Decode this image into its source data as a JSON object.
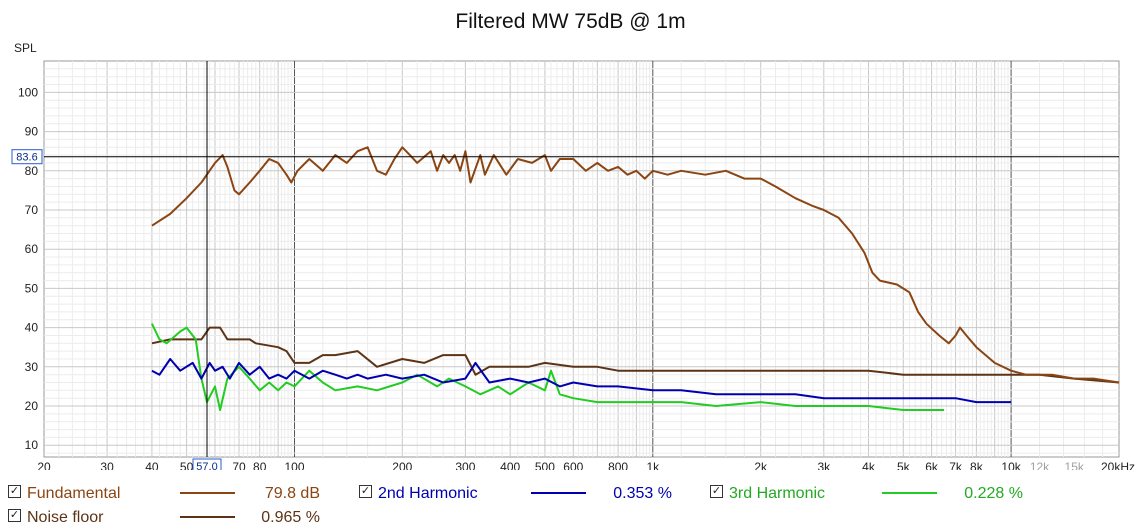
{
  "chart_data": {
    "type": "line",
    "title": "Filtered MW 75dB @ 1m",
    "ylabel": "SPL",
    "xlabel": "",
    "x_scale": "log",
    "xlim": [
      20,
      20000
    ],
    "ylim": [
      7,
      108
    ],
    "grid": true,
    "x_ticks": [
      {
        "v": 20,
        "label": "20"
      },
      {
        "v": 30,
        "label": "30"
      },
      {
        "v": 40,
        "label": "40"
      },
      {
        "v": 50,
        "label": "50"
      },
      {
        "v": 70,
        "label": "70"
      },
      {
        "v": 80,
        "label": "80"
      },
      {
        "v": 100,
        "label": "100"
      },
      {
        "v": 200,
        "label": "200"
      },
      {
        "v": 300,
        "label": "300"
      },
      {
        "v": 400,
        "label": "400"
      },
      {
        "v": 500,
        "label": "500"
      },
      {
        "v": 600,
        "label": "600"
      },
      {
        "v": 800,
        "label": "800"
      },
      {
        "v": 1000,
        "label": "1k"
      },
      {
        "v": 2000,
        "label": "2k"
      },
      {
        "v": 3000,
        "label": "3k"
      },
      {
        "v": 4000,
        "label": "4k"
      },
      {
        "v": 5000,
        "label": "5k"
      },
      {
        "v": 6000,
        "label": "6k"
      },
      {
        "v": 7000,
        "label": "7k"
      },
      {
        "v": 8000,
        "label": "8k"
      },
      {
        "v": 10000,
        "label": "10k"
      },
      {
        "v": 12000,
        "label": "12k",
        "muted": true
      },
      {
        "v": 15000,
        "label": "15k",
        "muted": true
      },
      {
        "v": 20000,
        "label": "20kHz"
      }
    ],
    "y_ticks": [
      10,
      20,
      30,
      40,
      50,
      60,
      70,
      80,
      90,
      100
    ],
    "cursor": {
      "x": 57.0,
      "x_label": "57.0",
      "y": 83.6,
      "y_label": "83.6"
    },
    "series": [
      {
        "name": "Fundamental",
        "color": "#8B4513",
        "value_label": "79.8 dB",
        "points": [
          [
            40,
            66
          ],
          [
            45,
            69
          ],
          [
            50,
            73
          ],
          [
            55,
            77
          ],
          [
            60,
            82
          ],
          [
            63,
            84
          ],
          [
            65,
            81
          ],
          [
            68,
            75
          ],
          [
            70,
            74
          ],
          [
            75,
            77
          ],
          [
            80,
            80
          ],
          [
            85,
            83
          ],
          [
            90,
            82
          ],
          [
            95,
            79
          ],
          [
            98,
            77
          ],
          [
            102,
            80
          ],
          [
            110,
            83
          ],
          [
            120,
            80
          ],
          [
            130,
            84
          ],
          [
            140,
            82
          ],
          [
            150,
            85
          ],
          [
            160,
            86
          ],
          [
            170,
            80
          ],
          [
            180,
            79
          ],
          [
            190,
            83
          ],
          [
            200,
            86
          ],
          [
            210,
            84
          ],
          [
            220,
            82
          ],
          [
            240,
            85
          ],
          [
            250,
            80
          ],
          [
            260,
            84
          ],
          [
            270,
            82
          ],
          [
            280,
            84
          ],
          [
            290,
            80
          ],
          [
            300,
            85
          ],
          [
            310,
            77
          ],
          [
            330,
            84
          ],
          [
            340,
            79
          ],
          [
            360,
            84
          ],
          [
            390,
            79
          ],
          [
            420,
            83
          ],
          [
            460,
            82
          ],
          [
            500,
            84
          ],
          [
            520,
            80
          ],
          [
            550,
            83
          ],
          [
            600,
            83
          ],
          [
            650,
            80
          ],
          [
            700,
            82
          ],
          [
            750,
            80
          ],
          [
            800,
            81
          ],
          [
            850,
            79
          ],
          [
            900,
            80
          ],
          [
            950,
            78
          ],
          [
            1000,
            80
          ],
          [
            1100,
            79
          ],
          [
            1200,
            80
          ],
          [
            1400,
            79
          ],
          [
            1600,
            80
          ],
          [
            1800,
            78
          ],
          [
            2000,
            78
          ],
          [
            2200,
            76
          ],
          [
            2500,
            73
          ],
          [
            2800,
            71
          ],
          [
            3000,
            70
          ],
          [
            3300,
            68
          ],
          [
            3600,
            64
          ],
          [
            3900,
            59
          ],
          [
            4100,
            54
          ],
          [
            4300,
            52
          ],
          [
            4800,
            51
          ],
          [
            5200,
            49
          ],
          [
            5500,
            44
          ],
          [
            5800,
            41
          ],
          [
            6300,
            38
          ],
          [
            6700,
            36
          ],
          [
            7000,
            38
          ],
          [
            7200,
            40
          ],
          [
            7500,
            38
          ],
          [
            8000,
            35
          ],
          [
            9000,
            31
          ],
          [
            10000,
            29
          ],
          [
            11000,
            28
          ],
          [
            13000,
            28
          ],
          [
            15000,
            27
          ],
          [
            17000,
            27
          ],
          [
            20000,
            26
          ]
        ]
      },
      {
        "name": "2nd Harmonic",
        "color": "#0000B0",
        "value_label": "0.353 %",
        "points": [
          [
            40,
            29
          ],
          [
            42,
            28
          ],
          [
            45,
            32
          ],
          [
            48,
            29
          ],
          [
            52,
            31
          ],
          [
            55,
            27
          ],
          [
            58,
            31
          ],
          [
            60,
            29
          ],
          [
            63,
            30
          ],
          [
            66,
            27
          ],
          [
            70,
            31
          ],
          [
            75,
            28
          ],
          [
            80,
            30
          ],
          [
            85,
            27
          ],
          [
            90,
            28
          ],
          [
            95,
            27
          ],
          [
            100,
            29
          ],
          [
            110,
            27
          ],
          [
            120,
            29
          ],
          [
            130,
            28
          ],
          [
            140,
            27
          ],
          [
            150,
            28
          ],
          [
            160,
            27
          ],
          [
            180,
            28
          ],
          [
            200,
            27
          ],
          [
            230,
            28
          ],
          [
            260,
            26
          ],
          [
            300,
            27
          ],
          [
            320,
            31
          ],
          [
            350,
            26
          ],
          [
            400,
            27
          ],
          [
            450,
            26
          ],
          [
            500,
            27
          ],
          [
            550,
            25
          ],
          [
            600,
            26
          ],
          [
            700,
            25
          ],
          [
            800,
            25
          ],
          [
            1000,
            24
          ],
          [
            1200,
            24
          ],
          [
            1500,
            23
          ],
          [
            2000,
            23
          ],
          [
            2500,
            23
          ],
          [
            3000,
            22
          ],
          [
            4000,
            22
          ],
          [
            5000,
            22
          ],
          [
            6000,
            22
          ],
          [
            7000,
            22
          ],
          [
            8000,
            21
          ],
          [
            10000,
            21
          ]
        ]
      },
      {
        "name": "3rd Harmonic",
        "color": "#22CC22",
        "value_label": "0.228 %",
        "points": [
          [
            40,
            41
          ],
          [
            42,
            37
          ],
          [
            44,
            36
          ],
          [
            48,
            39
          ],
          [
            50,
            40
          ],
          [
            53,
            37
          ],
          [
            55,
            27
          ],
          [
            57,
            21
          ],
          [
            60,
            25
          ],
          [
            62,
            19
          ],
          [
            65,
            27
          ],
          [
            70,
            30
          ],
          [
            75,
            27
          ],
          [
            80,
            24
          ],
          [
            85,
            26
          ],
          [
            90,
            24
          ],
          [
            95,
            26
          ],
          [
            100,
            25
          ],
          [
            110,
            29
          ],
          [
            120,
            26
          ],
          [
            130,
            24
          ],
          [
            150,
            25
          ],
          [
            170,
            24
          ],
          [
            200,
            26
          ],
          [
            220,
            28
          ],
          [
            250,
            25
          ],
          [
            270,
            27
          ],
          [
            300,
            25
          ],
          [
            330,
            23
          ],
          [
            370,
            25
          ],
          [
            400,
            23
          ],
          [
            450,
            26
          ],
          [
            500,
            24
          ],
          [
            520,
            29
          ],
          [
            550,
            23
          ],
          [
            600,
            22
          ],
          [
            700,
            21
          ],
          [
            800,
            21
          ],
          [
            1000,
            21
          ],
          [
            1200,
            21
          ],
          [
            1500,
            20
          ],
          [
            2000,
            21
          ],
          [
            2500,
            20
          ],
          [
            3000,
            20
          ],
          [
            4000,
            20
          ],
          [
            5000,
            19
          ],
          [
            6000,
            19
          ],
          [
            6500,
            19
          ]
        ]
      },
      {
        "name": "Noise floor",
        "color": "#5C3317",
        "value_label": "0.965 %",
        "points": [
          [
            40,
            36
          ],
          [
            45,
            37
          ],
          [
            50,
            37
          ],
          [
            55,
            37
          ],
          [
            58,
            40
          ],
          [
            62,
            40
          ],
          [
            65,
            37
          ],
          [
            75,
            37
          ],
          [
            78,
            36
          ],
          [
            90,
            35
          ],
          [
            95,
            34
          ],
          [
            100,
            31
          ],
          [
            110,
            31
          ],
          [
            120,
            33
          ],
          [
            130,
            33
          ],
          [
            150,
            34
          ],
          [
            170,
            30
          ],
          [
            200,
            32
          ],
          [
            230,
            31
          ],
          [
            260,
            33
          ],
          [
            300,
            33
          ],
          [
            320,
            28
          ],
          [
            350,
            30
          ],
          [
            400,
            30
          ],
          [
            450,
            30
          ],
          [
            500,
            31
          ],
          [
            600,
            30
          ],
          [
            700,
            30
          ],
          [
            800,
            29
          ],
          [
            1000,
            29
          ],
          [
            1200,
            29
          ],
          [
            1500,
            29
          ],
          [
            2000,
            29
          ],
          [
            2500,
            29
          ],
          [
            3000,
            29
          ],
          [
            4000,
            29
          ],
          [
            5000,
            28
          ],
          [
            6000,
            28
          ],
          [
            7000,
            28
          ],
          [
            8000,
            28
          ],
          [
            10000,
            28
          ],
          [
            12000,
            28
          ],
          [
            15000,
            27
          ],
          [
            20000,
            26
          ]
        ]
      }
    ]
  },
  "legend": {
    "fundamental": {
      "label": "Fundamental",
      "value": "79.8 dB"
    },
    "second": {
      "label": "2nd Harmonic",
      "value": "0.353 %"
    },
    "third": {
      "label": "3rd Harmonic",
      "value": "0.228 %"
    },
    "noise": {
      "label": "Noise floor",
      "value": "0.965 %"
    },
    "check_glyph": "✓"
  }
}
